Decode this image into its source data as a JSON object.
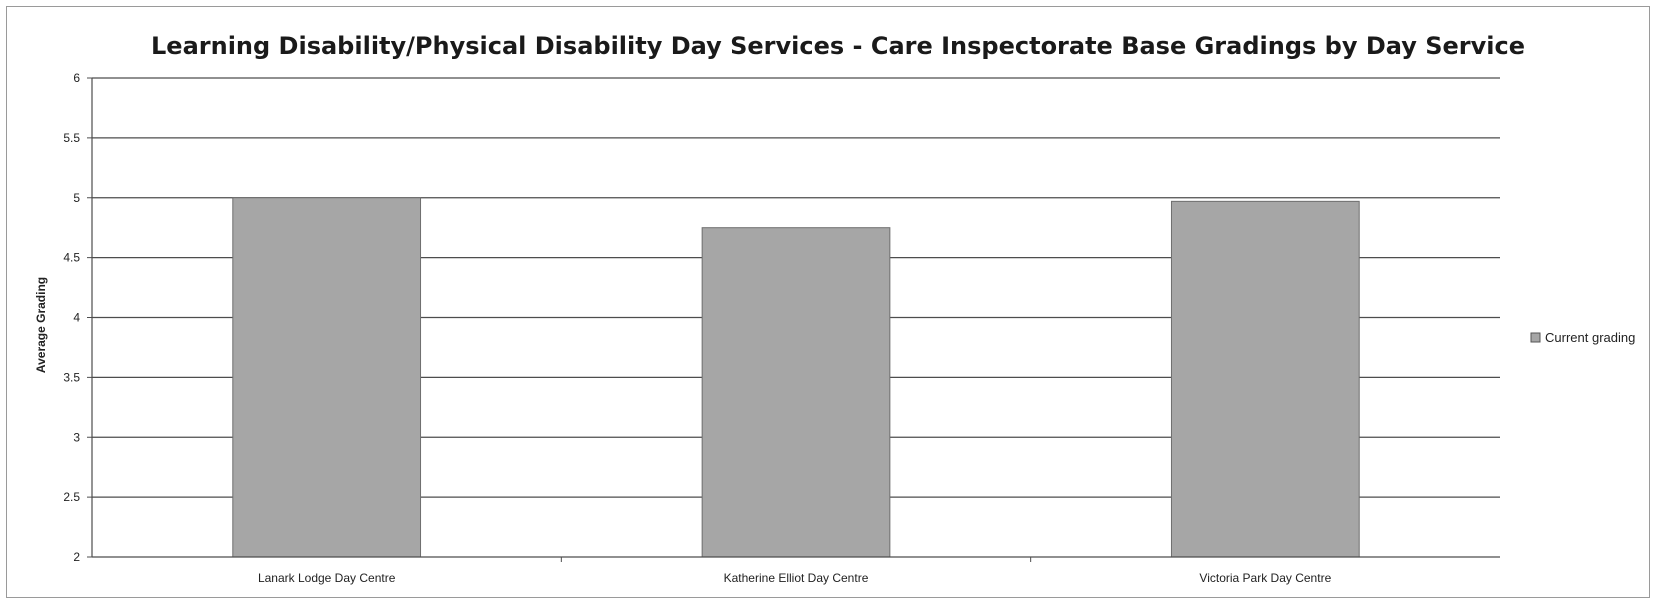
{
  "chart_data": {
    "type": "bar",
    "title": "Learning Disability/Physical Disability Day Services - Care Inspectorate Base Gradings by Day Service",
    "xlabel": "",
    "ylabel": "Average Grading",
    "ylim": [
      2,
      6
    ],
    "yticks": [
      "2",
      "2.5",
      "3",
      "3.5",
      "4",
      "4.5",
      "5",
      "5.5",
      "6"
    ],
    "grid": true,
    "categories": [
      "Lanark Lodge Day Centre",
      "Katherine Elliot Day Centre",
      "Victoria Park Day Centre"
    ],
    "series": [
      {
        "name": "Current grading",
        "values": [
          5.0,
          4.75,
          4.97
        ],
        "color": "#a6a6a6"
      }
    ],
    "legend": {
      "position": "right",
      "entries": [
        "Current grading"
      ]
    }
  }
}
